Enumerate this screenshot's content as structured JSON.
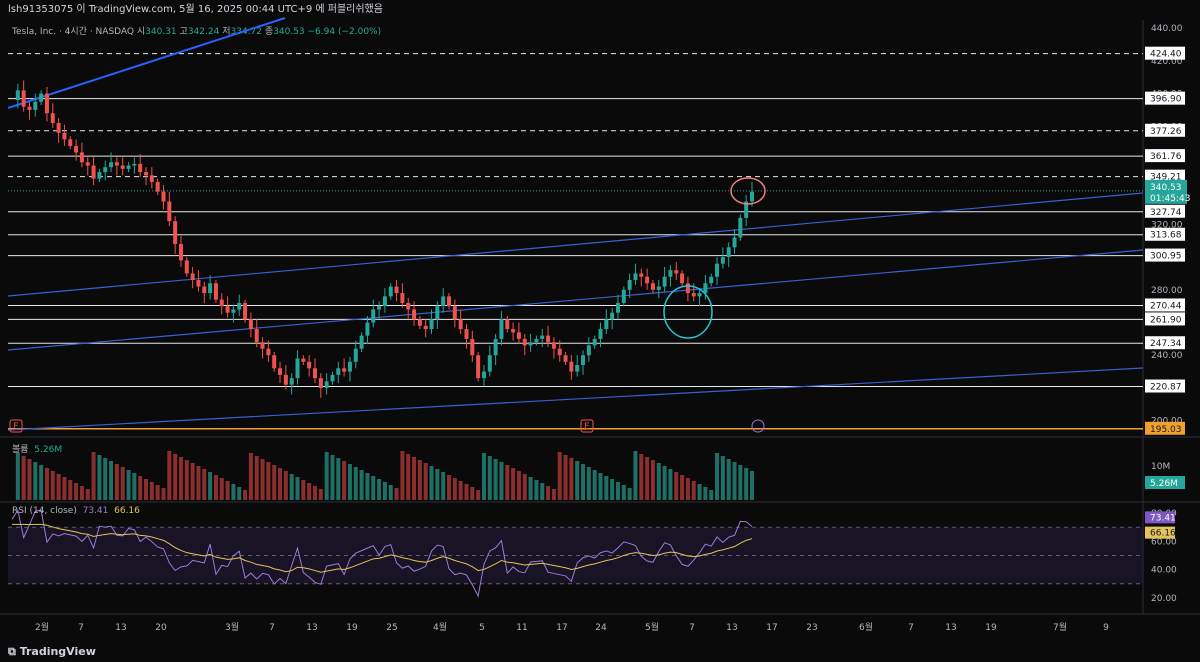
{
  "header": {
    "text": "lsh91353075 이 TradingView.com, 5월 16, 2025 00:44 UTC+9 에 퍼블리쉬했음"
  },
  "legend": {
    "symbol": "Tesla, Inc. · 4시간 · NASDAQ",
    "o_label": "시",
    "o": "340.31",
    "h_label": "고",
    "h": "342.24",
    "l_label": "저",
    "l": "334.72",
    "c_label": "종",
    "c": "340.53",
    "change": "−6.94 (−2.00%)"
  },
  "volume": {
    "label": "볼륨",
    "value": "5.26M",
    "axis_label": "10M"
  },
  "rsi": {
    "label": "RSI (14, close)",
    "value": "73.41",
    "ma_value": "66.16",
    "ticks": [
      "80.00",
      "60.00",
      "40.00",
      "20.00"
    ]
  },
  "price_axis": {
    "ticks": [
      "440.00",
      "420.00",
      "400.00",
      "380.00",
      "360.00",
      "340.00",
      "320.00",
      "300.00",
      "280.00",
      "260.00",
      "240.00",
      "220.00",
      "200.00"
    ]
  },
  "levels": [
    "424.40",
    "396.90",
    "377.26",
    "361.76",
    "349.21",
    "327.74",
    "313.68",
    "300.95",
    "270.44",
    "261.90",
    "247.34",
    "220.87",
    "195.03"
  ],
  "last_price": {
    "value": "340.53",
    "countdown": "01:45:43"
  },
  "time_axis": {
    "labels": [
      "2월",
      "7",
      "13",
      "20",
      "3월",
      "7",
      "13",
      "19",
      "25",
      "4월",
      "5",
      "11",
      "17",
      "24",
      "5월",
      "7",
      "13",
      "17",
      "23",
      "6월",
      "7",
      "13",
      "19",
      "7월",
      "9"
    ]
  },
  "footer": {
    "brand": "TradingView"
  },
  "chart_data": {
    "type": "candlestick",
    "title": "Tesla, Inc. · 4시간 · NASDAQ",
    "ylim": [
      190,
      445
    ],
    "horizontal_levels": [
      424.4,
      396.9,
      377.26,
      361.76,
      349.21,
      327.74,
      313.68,
      300.95,
      270.44,
      261.9,
      247.34,
      220.87,
      195.03
    ],
    "close_series": [
      396,
      402,
      392,
      390,
      395,
      400,
      388,
      382,
      376,
      372,
      368,
      364,
      358,
      356,
      348,
      352,
      355,
      358,
      356,
      354,
      356,
      357,
      352,
      350,
      346,
      340,
      334,
      322,
      308,
      298,
      290,
      286,
      282,
      278,
      284,
      274,
      270,
      266,
      268,
      272,
      262,
      256,
      248,
      244,
      240,
      232,
      228,
      222,
      226,
      238,
      236,
      232,
      226,
      220,
      224,
      228,
      232,
      230,
      236,
      244,
      252,
      260,
      268,
      270,
      276,
      282,
      278,
      272,
      268,
      262,
      258,
      256,
      262,
      270,
      276,
      270,
      262,
      256,
      250,
      240,
      226,
      230,
      240,
      250,
      262,
      256,
      254,
      250,
      246,
      248,
      250,
      252,
      248,
      244,
      240,
      236,
      230,
      234,
      240,
      246,
      250,
      256,
      262,
      266,
      272,
      280,
      286,
      290,
      288,
      284,
      280,
      282,
      288,
      292,
      290,
      284,
      278,
      276,
      278,
      284,
      288,
      296,
      300,
      306,
      312,
      324,
      334,
      340
    ]
  }
}
